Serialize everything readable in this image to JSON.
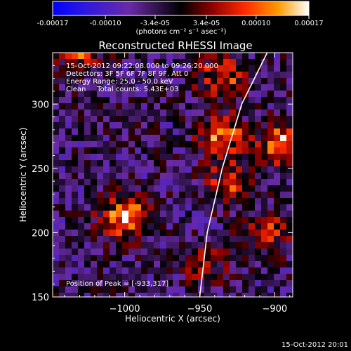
{
  "colorbar": {
    "tick_labels": [
      "-0.00017",
      "-0.00010",
      "-3.4e-05",
      "3.4e-05",
      "0.00010",
      "0.00017"
    ],
    "tick_values": [
      -0.00017,
      -0.0001,
      -3.4e-05,
      3.4e-05,
      0.0001,
      0.00017
    ],
    "range": [
      -0.00017,
      0.00017
    ],
    "unit_label": "(photons cm⁻² s⁻¹ asec⁻²)",
    "palette": [
      "#0000ff",
      "#4020c0",
      "#6a2aa6",
      "#000000",
      "#8a0000",
      "#ff2a00",
      "#ff9a00",
      "#ffff9a",
      "#ffffff"
    ]
  },
  "chart_data": {
    "type": "heatmap",
    "title": "Reconstructed RHESSI Image",
    "xlabel": "Heliocentric X (arcsec)",
    "ylabel": "Heliocentric Y (arcsec)",
    "xlim": [
      -1048,
      -888
    ],
    "ylim": [
      150,
      340
    ],
    "x_ticks": [
      -1000,
      -950,
      -900
    ],
    "x_tick_labels": [
      "−1000",
      "−950",
      "−900"
    ],
    "y_ticks": [
      150,
      200,
      250,
      300
    ],
    "y_tick_labels": [
      "150",
      "200",
      "250",
      "300"
    ],
    "grid": false,
    "limb_curve": [
      [
        -950,
        150
      ],
      [
        -945,
        200
      ],
      [
        -935,
        250
      ],
      [
        -922,
        300
      ],
      [
        -905,
        340
      ]
    ],
    "hotspots": [
      {
        "x": -1000,
        "y": 212,
        "value": 0.00017
      },
      {
        "x": -935,
        "y": 275,
        "value": 0.00014
      },
      {
        "x": -930,
        "y": 238,
        "value": 0.00011
      },
      {
        "x": -895,
        "y": 270,
        "value": 0.00014
      },
      {
        "x": -935,
        "y": 320,
        "value": 0.00012
      },
      {
        "x": -1030,
        "y": 338,
        "value": 0.0001
      },
      {
        "x": -905,
        "y": 200,
        "value": 0.0001
      },
      {
        "x": -945,
        "y": 175,
        "value": 7e-05
      }
    ],
    "annotations": [
      "15-Oct-2012 09:22:08.000 to 09:26:20.000",
      "Detectors: 3F 5F 6F 7F 8F 9F, Att 0",
      "Energy Range: 25.0 - 50.0 keV",
      "Clean     Total counts: 5.43E+03"
    ],
    "peak_label": "Position of Peak = [-933,317]"
  },
  "footer": {
    "timestamp": "15-Oct-2012 20:01"
  }
}
